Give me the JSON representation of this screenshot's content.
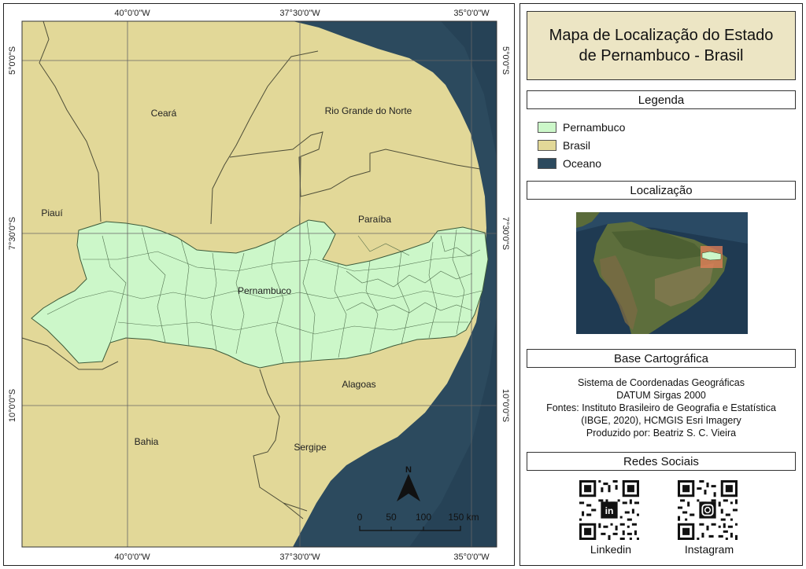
{
  "map": {
    "graticule_top": [
      "40°0'0\"W",
      "37°30'0\"W",
      "35°0'0\"W"
    ],
    "graticule_bottom": [
      "40°0'0\"W",
      "37°30'0\"W",
      "35°0'0\"W"
    ],
    "graticule_left": [
      "5°0'0\"S",
      "7°30'0\"S",
      "10°0'0\"S"
    ],
    "graticule_right": [
      "5°0'0\"S",
      "7°30'0\"S",
      "10°0'0\"S"
    ],
    "state_labels": {
      "ceara": "Ceará",
      "rn": "Rio Grande do Norte",
      "piaui": "Piauí",
      "paraiba": "Paraíba",
      "pernambuco": "Pernambuco",
      "alagoas": "Alagoas",
      "bahia": "Bahia",
      "sergipe": "Sergipe"
    },
    "north_label": "N",
    "scale_labels": [
      "0",
      "50",
      "100",
      "150 km"
    ],
    "colors": {
      "pernambuco": "#ccf7c9",
      "brasil": "#e2d898",
      "ocean": "#2c4a5e",
      "border": "#5a5a40"
    }
  },
  "title": "Mapa de Localização do Estado\nde Pernambuco - Brasil",
  "legend": {
    "heading": "Legenda",
    "items": [
      {
        "label": "Pernambuco",
        "color": "#ccf7c9"
      },
      {
        "label": "Brasil",
        "color": "#e2d898"
      },
      {
        "label": "Oceano",
        "color": "#2c4a5e"
      }
    ]
  },
  "location": {
    "heading": "Localização"
  },
  "base": {
    "heading": "Base Cartográfica",
    "lines": [
      "Sistema de Coordenadas Geográficas",
      "DATUM Sirgas 2000",
      "Fontes: Instituto Brasileiro de Geografia e Estatística",
      "(IBGE, 2020), HCMGIS Esri Imagery",
      "Produzido por: Beatriz S. C. Vieira"
    ]
  },
  "social": {
    "heading": "Redes Sociais",
    "linkedin_label": "Linkedin",
    "instagram_label": "Instagram"
  }
}
